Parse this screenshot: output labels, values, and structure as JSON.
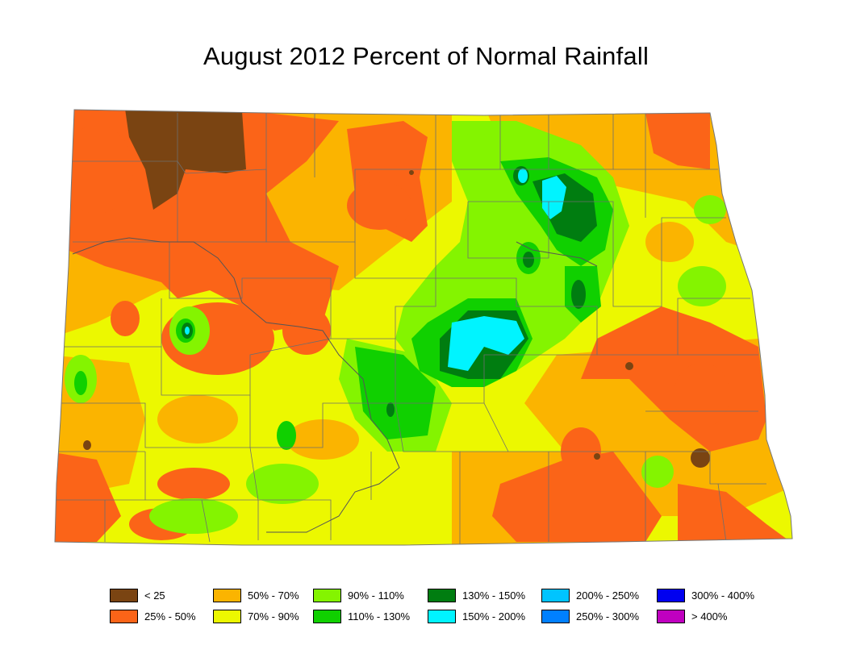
{
  "title": "August 2012 Percent of Normal Rainfall",
  "colors": {
    "lt25": "#7a4412",
    "p25_50": "#fb6418",
    "p50_70": "#fbb400",
    "p70_90": "#ecf800",
    "p90_110": "#84f400",
    "p110_130": "#10d000",
    "p130_150": "#007d10",
    "p150_200": "#00f4ff",
    "p200_250": "#00c4ff",
    "p250_300": "#0080ff",
    "p300_400": "#0000f0",
    "gt400": "#c000c0"
  },
  "legend": [
    {
      "label": "< 25",
      "color": "#7a4412"
    },
    {
      "label": "25% - 50%",
      "color": "#fb6418"
    },
    {
      "label": "50% - 70%",
      "color": "#fbb400"
    },
    {
      "label": "70% - 90%",
      "color": "#ecf800"
    },
    {
      "label": "90% - 110%",
      "color": "#84f400"
    },
    {
      "label": "110% - 130%",
      "color": "#10d000"
    },
    {
      "label": "130% - 150%",
      "color": "#007d10"
    },
    {
      "label": "150% - 200%",
      "color": "#00f4ff"
    },
    {
      "label": "200% - 250%",
      "color": "#00c4ff"
    },
    {
      "label": "250% - 300%",
      "color": "#0080ff"
    },
    {
      "label": "300% - 400%",
      "color": "#0000f0"
    },
    {
      "label": "> 400%",
      "color": "#c000c0"
    }
  ]
}
